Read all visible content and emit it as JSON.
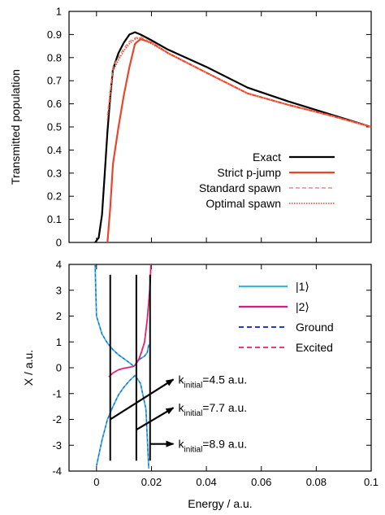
{
  "chart_data": [
    {
      "type": "line",
      "title": "",
      "xlabel": "",
      "ylabel": "Transmitted population",
      "xlim": [
        -0.01,
        0.1
      ],
      "ylim": [
        0,
        1
      ],
      "grid": false,
      "legend_placement": "center-right",
      "x_ticks": [],
      "y_ticks": [
        "0",
        "0.1",
        "0.2",
        "0.3",
        "0.4",
        "0.5",
        "0.6",
        "0.7",
        "0.8",
        "0.9",
        "1"
      ],
      "series": [
        {
          "name": "Exact",
          "color": "#000000",
          "style": "solid",
          "x": [
            -0.0005,
            0.0008,
            0.002,
            0.003,
            0.004,
            0.005,
            0.006,
            0.008,
            0.01,
            0.012,
            0.014,
            0.016,
            0.02,
            0.026,
            0.04,
            0.055,
            0.07,
            0.085,
            0.1
          ],
          "y": [
            0.0,
            0.02,
            0.12,
            0.3,
            0.48,
            0.63,
            0.75,
            0.82,
            0.865,
            0.9,
            0.91,
            0.9,
            0.875,
            0.835,
            0.76,
            0.67,
            0.61,
            0.555,
            0.5
          ]
        },
        {
          "name": "Strict p-jump",
          "color": "#e8452c",
          "style": "solid",
          "x": [
            0.004,
            0.005,
            0.006,
            0.008,
            0.01,
            0.012,
            0.014,
            0.016,
            0.02,
            0.026,
            0.04,
            0.055,
            0.07,
            0.085,
            0.1
          ],
          "y": [
            0.0,
            0.15,
            0.34,
            0.5,
            0.64,
            0.76,
            0.86,
            0.88,
            0.865,
            0.82,
            0.735,
            0.645,
            0.595,
            0.55,
            0.5
          ]
        },
        {
          "name": "Standard spawn",
          "color": "#f08a70",
          "style": "dashed",
          "x": [
            0.004,
            0.006,
            0.008,
            0.01,
            0.012,
            0.014,
            0.016,
            0.02,
            0.026,
            0.04,
            0.055,
            0.07,
            0.085,
            0.1
          ],
          "y": [
            0.55,
            0.76,
            0.8,
            0.84,
            0.87,
            0.885,
            0.89,
            0.865,
            0.82,
            0.735,
            0.645,
            0.595,
            0.55,
            0.5
          ]
        },
        {
          "name": "Optimal spawn",
          "color": "#e8452c",
          "style": "dotted",
          "x": [
            0.004,
            0.006,
            0.008,
            0.01,
            0.012,
            0.014,
            0.016,
            0.02,
            0.026,
            0.04,
            0.055,
            0.07,
            0.085,
            0.1
          ],
          "y": [
            0.53,
            0.74,
            0.79,
            0.83,
            0.86,
            0.88,
            0.885,
            0.86,
            0.82,
            0.735,
            0.645,
            0.595,
            0.55,
            0.5
          ]
        }
      ]
    },
    {
      "type": "line",
      "title": "",
      "xlabel": "Energy / a.u.",
      "ylabel": "X / a.u.",
      "xlim": [
        -0.01,
        0.1
      ],
      "ylim": [
        -4,
        4
      ],
      "grid": false,
      "legend_placement": "top-right",
      "x_ticks": [
        "0",
        "0.02",
        "0.04",
        "0.06",
        "0.08",
        "0.1"
      ],
      "y_ticks": [
        "-4",
        "-3",
        "-2",
        "-1",
        "0",
        "1",
        "2",
        "3",
        "4"
      ],
      "series": [
        {
          "name": "|1⟩",
          "color": "#3ab7e0",
          "style": "solid",
          "curves": [
            {
              "x": [
                -0.0005,
                -0.0004,
                0.0,
                0.002,
                0.004,
                0.006,
                0.008,
                0.01,
                0.0125,
                0.0135
              ],
              "y": [
                4.0,
                3.5,
                2.0,
                1.3,
                0.95,
                0.7,
                0.5,
                0.35,
                0.15,
                0.05
              ]
            },
            {
              "x": [
                0.0135,
                0.014,
                0.015,
                0.016,
                0.0175,
                0.0185,
                0.019
              ],
              "y": [
                0.05,
                0.1,
                0.25,
                0.35,
                0.45,
                0.6,
                0.9
              ]
            },
            {
              "x": [
                0.0,
                0.002,
                0.004,
                0.006,
                0.008,
                0.01,
                0.012,
                0.014,
                0.016,
                0.018,
                0.019
              ],
              "y": [
                -3.8,
                -2.8,
                -2.0,
                -1.5,
                -1.05,
                -0.75,
                -0.5,
                -0.3,
                -0.6,
                -1.6,
                -3.9
              ]
            }
          ]
        },
        {
          "name": "|2⟩",
          "color": "#e0197d",
          "style": "solid",
          "curves": [
            {
              "x": [
                0.0045,
                0.006,
                0.008,
                0.01,
                0.012,
                0.0135
              ],
              "y": [
                -0.35,
                -0.2,
                -0.08,
                -0.02,
                0.02,
                0.05
              ]
            },
            {
              "x": [
                0.014,
                0.0155,
                0.0165,
                0.0175,
                0.0185,
                0.0195,
                0.0198
              ],
              "y": [
                0.1,
                0.35,
                0.65,
                1.0,
                1.9,
                3.2,
                4.0
              ]
            }
          ]
        },
        {
          "name": "Ground",
          "color": "#1e3fc6",
          "style": "dashed"
        },
        {
          "name": "Excited",
          "color": "#e83e6c",
          "style": "dashed"
        }
      ],
      "vertical_lines": [
        0.005,
        0.0145,
        0.0195
      ],
      "vertical_range": [
        -3.6,
        3.6
      ],
      "annotations": [
        {
          "label_main": "k",
          "label_sub": "initial",
          "label_value": "=4.5 a.u.",
          "arrow_from": [
            0.005,
            -2.0
          ],
          "arrow_to": [
            0.028,
            -0.45
          ]
        },
        {
          "label_main": "k",
          "label_sub": "initial",
          "label_value": "=7.7 a.u.",
          "arrow_from": [
            0.0145,
            -2.4
          ],
          "arrow_to": [
            0.028,
            -1.55
          ]
        },
        {
          "label_main": "k",
          "label_sub": "initial",
          "label_value": "=8.9 a.u.",
          "arrow_from": [
            0.0195,
            -2.95
          ],
          "arrow_to": [
            0.028,
            -2.95
          ]
        }
      ]
    }
  ]
}
